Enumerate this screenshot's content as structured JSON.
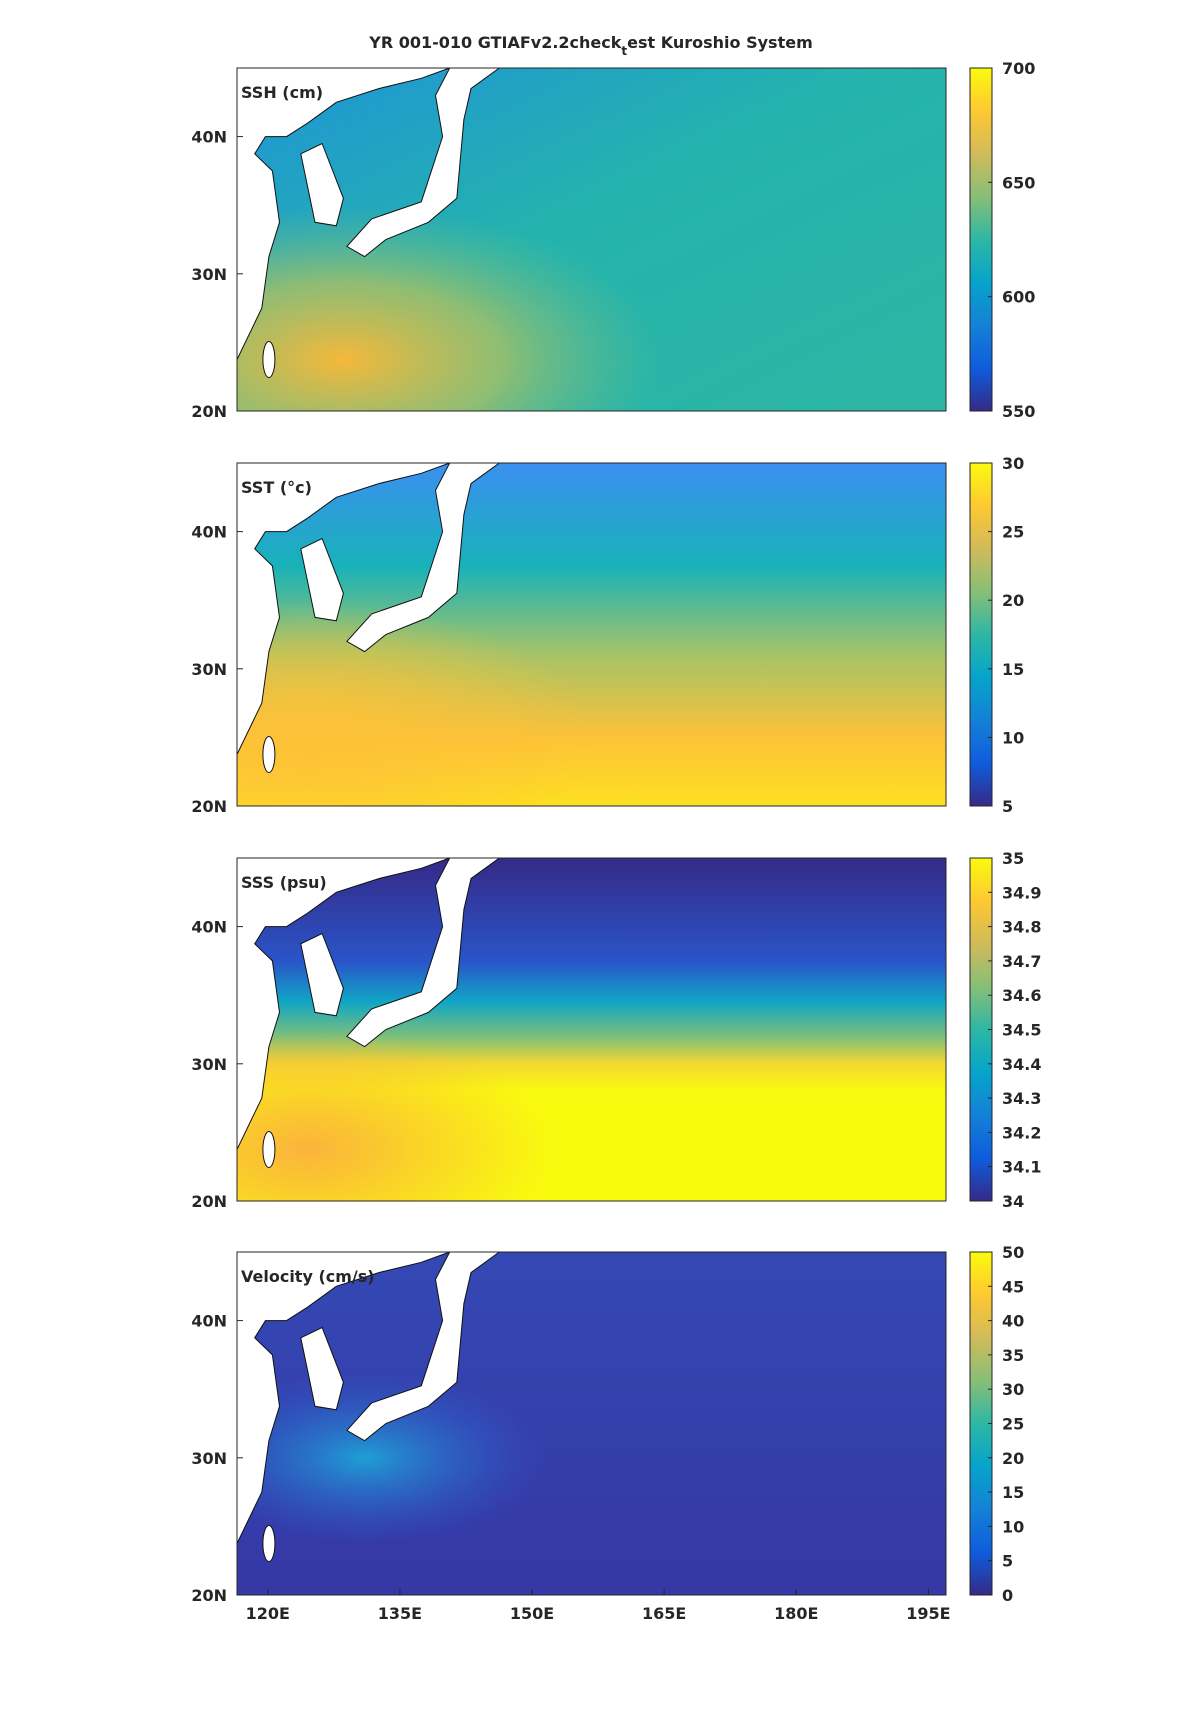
{
  "title": [
    "YR 001-010 GTIAFv2.2check",
    "t",
    "est Kuroshio System"
  ],
  "colormap": [
    "#352a87",
    "#0f5cdd",
    "#1481d6",
    "#06a4ca",
    "#2eb7a4",
    "#87bf77",
    "#d1bb59",
    "#fec832",
    "#f9fb0e"
  ],
  "chart_data": [
    {
      "type": "map",
      "label": "SSH (cm)",
      "xlim": [
        116.5,
        197
      ],
      "ylim": [
        20,
        45
      ],
      "yticks": [
        {
          "value": 20,
          "label": "20N"
        },
        {
          "value": 30,
          "label": "30N"
        },
        {
          "value": 40,
          "label": "40N"
        }
      ],
      "clim": [
        550,
        700
      ],
      "cticks": [
        550,
        600,
        650,
        700
      ]
    },
    {
      "type": "map",
      "label": "SST (°c)",
      "xlim": [
        116.5,
        197
      ],
      "ylim": [
        20,
        45
      ],
      "yticks": [
        {
          "value": 20,
          "label": "20N"
        },
        {
          "value": 30,
          "label": "30N"
        },
        {
          "value": 40,
          "label": "40N"
        }
      ],
      "clim": [
        5,
        30
      ],
      "cticks": [
        5,
        10,
        15,
        20,
        25,
        30
      ]
    },
    {
      "type": "map",
      "label": "SSS (psu)",
      "xlim": [
        116.5,
        197
      ],
      "ylim": [
        20,
        45
      ],
      "yticks": [
        {
          "value": 20,
          "label": "20N"
        },
        {
          "value": 30,
          "label": "30N"
        },
        {
          "value": 40,
          "label": "40N"
        }
      ],
      "clim": [
        34,
        35
      ],
      "cticks": [
        34,
        34.1,
        34.2,
        34.3,
        34.4,
        34.5,
        34.6,
        34.7,
        34.8,
        34.9,
        35
      ]
    },
    {
      "type": "map",
      "label": "Velocity (cm/s)",
      "xlim": [
        116.5,
        197
      ],
      "ylim": [
        20,
        45
      ],
      "xticks": [
        {
          "value": 120,
          "label": "120E"
        },
        {
          "value": 135,
          "label": "135E"
        },
        {
          "value": 150,
          "label": "150E"
        },
        {
          "value": 165,
          "label": "165E"
        },
        {
          "value": 180,
          "label": "180E"
        },
        {
          "value": 195,
          "label": "195E"
        }
      ],
      "yticks": [
        {
          "value": 20,
          "label": "20N"
        },
        {
          "value": 30,
          "label": "30N"
        },
        {
          "value": 40,
          "label": "40N"
        }
      ],
      "clim": [
        0,
        50
      ],
      "cticks": [
        0,
        5,
        10,
        15,
        20,
        25,
        30,
        35,
        40,
        45,
        50
      ]
    }
  ]
}
